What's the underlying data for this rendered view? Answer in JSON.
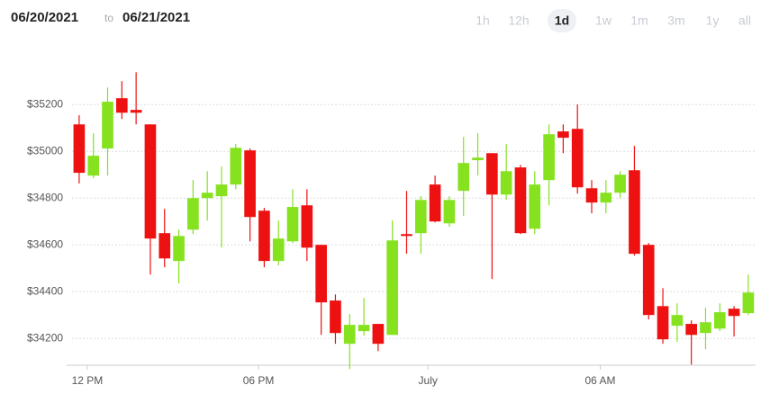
{
  "header": {
    "from": "06/20/2021",
    "separator": "to",
    "to": "06/21/2021"
  },
  "range_buttons": {
    "labels": [
      "1h",
      "12h",
      "1d",
      "1w",
      "1m",
      "3m",
      "1y",
      "all"
    ],
    "selected": "1d"
  },
  "chart_data": {
    "type": "candlestick",
    "up_color": "#86e21f",
    "down_color": "#ee1111",
    "grid": true,
    "open": [
      35115,
      34896,
      35012,
      35227,
      35177,
      35115,
      34650,
      34531,
      34665,
      34800,
      34808,
      34858,
      35004,
      34746,
      34531,
      34615,
      34769,
      34600,
      34362,
      34177,
      34231,
      34262,
      34215,
      34646,
      34650,
      34858,
      34692,
      34831,
      34962,
      34992,
      34815,
      34931,
      34669,
      34877,
      35085,
      35096,
      34842,
      34781,
      34823,
      34919,
      34600,
      34338,
      34254,
      34262,
      34223,
      34242,
      34327,
      34308
    ],
    "high": [
      35154,
      35077,
      35273,
      35300,
      35338,
      35115,
      34754,
      34665,
      34877,
      34915,
      34935,
      35031,
      35012,
      34758,
      34704,
      34838,
      34838,
      34600,
      34388,
      34304,
      34373,
      34262,
      34704,
      34831,
      34808,
      34896,
      34808,
      35062,
      35077,
      34992,
      35031,
      34942,
      34915,
      35115,
      35115,
      35200,
      34877,
      34877,
      34915,
      35023,
      34608,
      34415,
      34350,
      34277,
      34331,
      34350,
      34338,
      34473
    ],
    "low": [
      34862,
      34885,
      34896,
      35138,
      35115,
      34473,
      34504,
      34435,
      34646,
      34704,
      34588,
      34838,
      34615,
      34504,
      34512,
      34608,
      34531,
      34215,
      34177,
      34069,
      34212,
      34146,
      34215,
      34562,
      34562,
      34696,
      34677,
      34723,
      34896,
      34454,
      34792,
      34646,
      34646,
      34769,
      34992,
      34819,
      34735,
      34735,
      34800,
      34554,
      34281,
      34177,
      34185,
      34088,
      34154,
      34231,
      34208,
      34300
    ],
    "close": [
      34908,
      34981,
      35212,
      35165,
      35165,
      34627,
      34542,
      34638,
      34800,
      34823,
      34858,
      35015,
      34719,
      34531,
      34627,
      34762,
      34588,
      34354,
      34223,
      34258,
      34258,
      34177,
      34619,
      34638,
      34792,
      34700,
      34792,
      34950,
      34973,
      34815,
      34915,
      34650,
      34858,
      35073,
      35058,
      34846,
      34781,
      34823,
      34900,
      34562,
      34300,
      34196,
      34300,
      34215,
      34269,
      34312,
      34296,
      34396
    ],
    "xlim": [
      -0.5,
      47.5
    ],
    "xticks": [
      {
        "value": 0.57,
        "label": "12 PM"
      },
      {
        "value": 12.6,
        "label": "06 PM"
      },
      {
        "value": 24.5,
        "label": "July"
      },
      {
        "value": 36.6,
        "label": "06 AM"
      }
    ],
    "ylim": [
      34060,
      35470
    ],
    "yticks": [
      {
        "value": 34200,
        "label": "$34200"
      },
      {
        "value": 34400,
        "label": "$34400"
      },
      {
        "value": 34600,
        "label": "$34600"
      },
      {
        "value": 34800,
        "label": "$34800"
      },
      {
        "value": 35000,
        "label": "$35000"
      },
      {
        "value": 35200,
        "label": "$35200"
      }
    ]
  }
}
